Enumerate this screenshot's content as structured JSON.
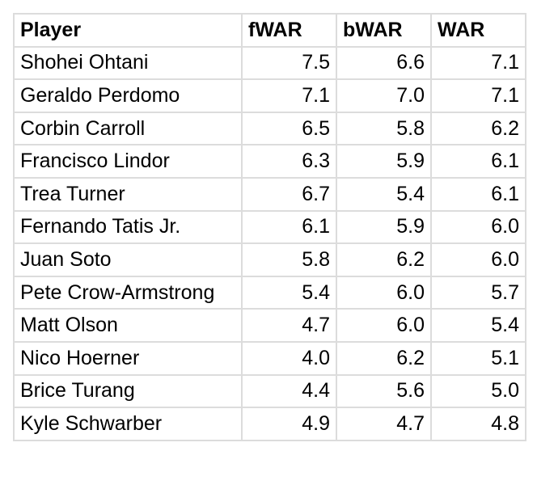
{
  "table": {
    "headers": [
      "Player",
      "fWAR",
      "bWAR",
      "WAR"
    ],
    "rows": [
      [
        "Shohei Ohtani",
        "7.5",
        "6.6",
        "7.1"
      ],
      [
        "Geraldo Perdomo",
        "7.1",
        "7.0",
        "7.1"
      ],
      [
        "Corbin Carroll",
        "6.5",
        "5.8",
        "6.2"
      ],
      [
        "Francisco Lindor",
        "6.3",
        "5.9",
        "6.1"
      ],
      [
        "Trea Turner",
        "6.7",
        "5.4",
        "6.1"
      ],
      [
        "Fernando Tatis Jr.",
        "6.1",
        "5.9",
        "6.0"
      ],
      [
        "Juan Soto",
        "5.8",
        "6.2",
        "6.0"
      ],
      [
        "Pete Crow-Armstrong",
        "5.4",
        "6.0",
        "5.7"
      ],
      [
        "Matt Olson",
        "4.7",
        "6.0",
        "5.4"
      ],
      [
        "Nico Hoerner",
        "4.0",
        "6.2",
        "5.1"
      ],
      [
        "Brice Turang",
        "4.4",
        "5.6",
        "5.0"
      ],
      [
        "Kyle Schwarber",
        "4.9",
        "4.7",
        "4.8"
      ]
    ]
  }
}
